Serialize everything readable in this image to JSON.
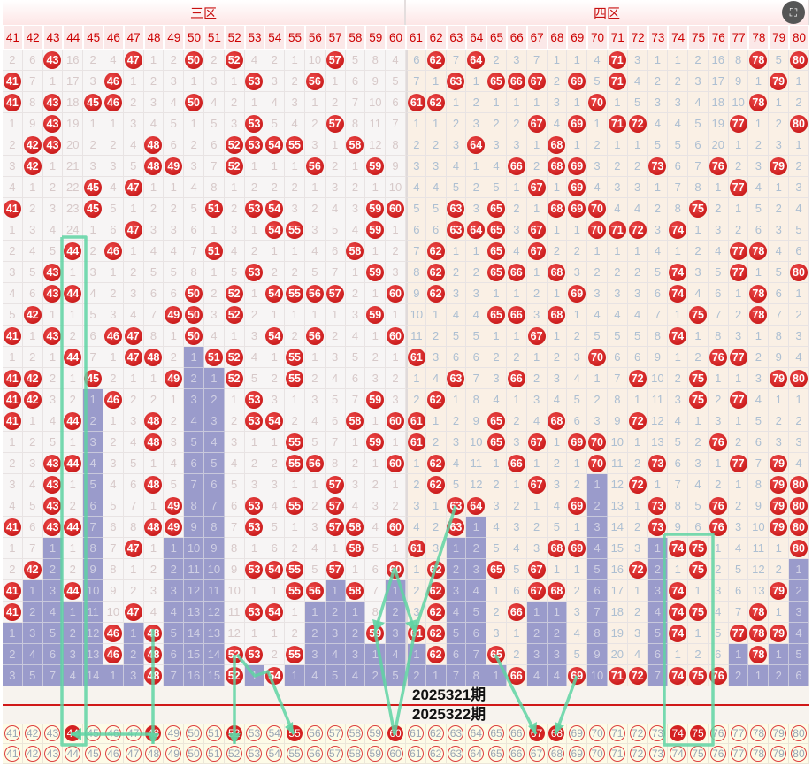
{
  "zones": [
    "三区",
    "四区"
  ],
  "columns": [
    41,
    42,
    43,
    44,
    45,
    46,
    47,
    48,
    49,
    50,
    51,
    52,
    53,
    54,
    55,
    56,
    57,
    58,
    59,
    60,
    61,
    62,
    63,
    64,
    65,
    66,
    67,
    68,
    69,
    70,
    71,
    72,
    73,
    74,
    75,
    76,
    77,
    78,
    79,
    80
  ],
  "rows": [
    [
      2,
      6,
      43,
      16,
      2,
      4,
      47,
      1,
      2,
      50,
      2,
      52,
      4,
      2,
      1,
      10,
      57,
      5,
      8,
      4,
      6,
      62,
      7,
      64,
      2,
      3,
      7,
      1,
      1,
      4,
      71,
      3,
      1,
      1,
      2,
      16,
      8,
      78,
      5,
      80
    ],
    [
      41,
      7,
      1,
      17,
      3,
      46,
      1,
      2,
      3,
      1,
      3,
      1,
      53,
      3,
      2,
      56,
      1,
      6,
      9,
      5,
      7,
      1,
      63,
      1,
      65,
      66,
      67,
      2,
      69,
      5,
      71,
      4,
      2,
      2,
      3,
      17,
      9,
      1,
      79,
      1
    ],
    [
      41,
      8,
      43,
      18,
      45,
      46,
      2,
      3,
      4,
      50,
      4,
      2,
      1,
      4,
      3,
      1,
      2,
      7,
      10,
      6,
      61,
      62,
      1,
      2,
      1,
      1,
      1,
      3,
      1,
      70,
      1,
      5,
      3,
      3,
      4,
      18,
      10,
      78,
      1,
      2
    ],
    [
      1,
      9,
      43,
      19,
      1,
      1,
      3,
      4,
      5,
      1,
      5,
      3,
      53,
      5,
      4,
      2,
      57,
      8,
      11,
      7,
      1,
      1,
      2,
      3,
      2,
      2,
      67,
      4,
      69,
      1,
      71,
      72,
      4,
      4,
      5,
      19,
      77,
      1,
      2,
      80
    ],
    [
      2,
      42,
      43,
      20,
      2,
      2,
      4,
      48,
      6,
      2,
      6,
      52,
      53,
      54,
      55,
      3,
      1,
      58,
      12,
      8,
      2,
      2,
      3,
      64,
      3,
      3,
      1,
      68,
      1,
      2,
      1,
      1,
      5,
      5,
      6,
      20,
      1,
      2,
      3,
      1
    ],
    [
      3,
      42,
      1,
      21,
      3,
      3,
      5,
      48,
      49,
      3,
      7,
      52,
      1,
      1,
      1,
      56,
      2,
      1,
      59,
      9,
      3,
      3,
      4,
      1,
      4,
      66,
      2,
      68,
      69,
      3,
      2,
      2,
      73,
      6,
      7,
      76,
      2,
      3,
      79,
      2
    ],
    [
      4,
      1,
      2,
      22,
      45,
      4,
      47,
      1,
      1,
      4,
      8,
      1,
      2,
      2,
      2,
      1,
      3,
      2,
      1,
      10,
      4,
      4,
      5,
      2,
      5,
      1,
      67,
      1,
      69,
      4,
      3,
      3,
      1,
      7,
      8,
      1,
      77,
      4,
      1,
      3
    ],
    [
      41,
      2,
      3,
      23,
      45,
      5,
      1,
      2,
      2,
      5,
      51,
      2,
      53,
      54,
      3,
      2,
      4,
      3,
      59,
      60,
      5,
      5,
      63,
      3,
      65,
      2,
      1,
      68,
      69,
      70,
      4,
      4,
      2,
      8,
      75,
      2,
      1,
      5,
      2,
      4
    ],
    [
      1,
      3,
      4,
      24,
      1,
      6,
      47,
      3,
      3,
      6,
      1,
      3,
      1,
      54,
      55,
      3,
      5,
      4,
      59,
      1,
      6,
      6,
      63,
      64,
      65,
      3,
      67,
      1,
      1,
      70,
      71,
      72,
      3,
      74,
      1,
      3,
      2,
      6,
      3,
      5
    ],
    [
      2,
      4,
      5,
      44,
      2,
      46,
      1,
      4,
      4,
      7,
      51,
      4,
      2,
      1,
      1,
      4,
      6,
      58,
      1,
      2,
      7,
      62,
      1,
      1,
      65,
      4,
      67,
      2,
      2,
      1,
      1,
      1,
      4,
      1,
      2,
      4,
      77,
      78,
      4,
      6
    ],
    [
      3,
      5,
      43,
      1,
      3,
      1,
      2,
      5,
      5,
      8,
      1,
      5,
      53,
      2,
      2,
      5,
      7,
      1,
      59,
      3,
      8,
      62,
      2,
      2,
      65,
      66,
      1,
      68,
      3,
      2,
      2,
      2,
      5,
      74,
      3,
      5,
      77,
      1,
      5,
      80
    ],
    [
      4,
      6,
      43,
      44,
      4,
      2,
      3,
      6,
      6,
      50,
      2,
      52,
      1,
      54,
      55,
      56,
      57,
      2,
      1,
      60,
      9,
      62,
      3,
      3,
      1,
      1,
      2,
      1,
      69,
      3,
      3,
      3,
      6,
      74,
      4,
      6,
      1,
      78,
      6,
      1
    ],
    [
      5,
      42,
      1,
      1,
      5,
      3,
      4,
      7,
      49,
      50,
      3,
      52,
      2,
      1,
      1,
      1,
      1,
      3,
      59,
      1,
      10,
      1,
      4,
      4,
      65,
      66,
      3,
      68,
      1,
      4,
      4,
      4,
      7,
      1,
      75,
      7,
      2,
      78,
      7,
      2
    ],
    [
      41,
      1,
      43,
      2,
      6,
      46,
      47,
      8,
      1,
      50,
      4,
      1,
      3,
      54,
      2,
      56,
      2,
      4,
      1,
      60,
      11,
      2,
      5,
      5,
      1,
      1,
      67,
      1,
      2,
      5,
      5,
      5,
      8,
      74,
      1,
      8,
      3,
      1,
      8,
      3
    ],
    [
      1,
      2,
      1,
      44,
      7,
      1,
      47,
      48,
      2,
      1,
      51,
      52,
      4,
      1,
      55,
      1,
      3,
      5,
      2,
      1,
      61,
      3,
      6,
      6,
      2,
      2,
      1,
      2,
      3,
      70,
      6,
      6,
      9,
      1,
      2,
      76,
      77,
      2,
      9,
      4
    ],
    [
      41,
      42,
      2,
      1,
      45,
      2,
      1,
      1,
      49,
      2,
      1,
      52,
      5,
      2,
      55,
      2,
      4,
      6,
      3,
      2,
      1,
      4,
      63,
      7,
      3,
      66,
      2,
      3,
      4,
      1,
      7,
      72,
      10,
      2,
      75,
      1,
      1,
      3,
      79,
      80
    ],
    [
      41,
      42,
      3,
      2,
      1,
      46,
      2,
      2,
      1,
      3,
      2,
      1,
      53,
      3,
      1,
      3,
      5,
      7,
      59,
      3,
      2,
      62,
      1,
      8,
      4,
      1,
      3,
      4,
      5,
      2,
      8,
      1,
      11,
      3,
      75,
      2,
      77,
      4,
      1,
      1
    ],
    [
      41,
      1,
      4,
      44,
      2,
      1,
      3,
      48,
      2,
      4,
      3,
      2,
      53,
      54,
      2,
      4,
      6,
      58,
      1,
      60,
      61,
      1,
      2,
      9,
      65,
      2,
      4,
      68,
      6,
      3,
      9,
      72,
      12,
      4,
      1,
      3,
      1,
      5,
      2,
      2
    ],
    [
      1,
      2,
      5,
      1,
      3,
      2,
      4,
      48,
      3,
      5,
      4,
      3,
      1,
      1,
      55,
      5,
      7,
      1,
      59,
      1,
      61,
      2,
      3,
      10,
      65,
      3,
      67,
      1,
      69,
      70,
      10,
      1,
      13,
      5,
      2,
      76,
      2,
      6,
      3,
      3
    ],
    [
      2,
      3,
      43,
      44,
      4,
      3,
      5,
      1,
      4,
      6,
      5,
      4,
      2,
      2,
      55,
      56,
      8,
      2,
      1,
      60,
      1,
      62,
      4,
      11,
      1,
      66,
      1,
      2,
      1,
      70,
      11,
      2,
      73,
      6,
      3,
      1,
      77,
      7,
      79,
      4
    ],
    [
      3,
      4,
      43,
      1,
      5,
      4,
      6,
      48,
      5,
      7,
      6,
      5,
      3,
      3,
      1,
      1,
      57,
      3,
      2,
      1,
      2,
      62,
      5,
      12,
      2,
      1,
      67,
      3,
      2,
      1,
      12,
      72,
      1,
      7,
      4,
      2,
      1,
      8,
      79,
      80
    ],
    [
      4,
      5,
      43,
      2,
      6,
      5,
      7,
      1,
      49,
      8,
      7,
      6,
      53,
      4,
      55,
      2,
      57,
      4,
      3,
      2,
      3,
      1,
      63,
      64,
      3,
      2,
      1,
      4,
      69,
      2,
      13,
      1,
      73,
      8,
      5,
      76,
      2,
      9,
      79,
      80
    ],
    [
      41,
      6,
      43,
      44,
      7,
      6,
      8,
      48,
      49,
      9,
      8,
      7,
      53,
      5,
      1,
      3,
      57,
      58,
      4,
      60,
      4,
      2,
      63,
      1,
      4,
      3,
      2,
      5,
      1,
      3,
      14,
      2,
      73,
      9,
      6,
      76,
      3,
      10,
      79,
      80
    ],
    [
      1,
      7,
      1,
      1,
      8,
      7,
      47,
      1,
      1,
      10,
      9,
      8,
      1,
      6,
      2,
      4,
      1,
      58,
      5,
      1,
      61,
      3,
      1,
      2,
      5,
      4,
      3,
      68,
      69,
      4,
      15,
      3,
      1,
      74,
      75,
      1,
      4,
      11,
      1,
      80
    ],
    [
      2,
      42,
      2,
      2,
      9,
      8,
      1,
      2,
      2,
      11,
      10,
      9,
      53,
      54,
      55,
      5,
      57,
      1,
      6,
      60,
      1,
      62,
      2,
      3,
      65,
      5,
      67,
      1,
      1,
      5,
      16,
      72,
      2,
      1,
      75,
      2,
      5,
      12,
      2,
      1
    ],
    [
      41,
      1,
      3,
      44,
      10,
      9,
      2,
      3,
      3,
      12,
      11,
      10,
      1,
      1,
      55,
      56,
      1,
      58,
      7,
      1,
      2,
      62,
      3,
      4,
      1,
      6,
      67,
      68,
      2,
      6,
      17,
      1,
      3,
      74,
      1,
      3,
      6,
      13,
      79,
      2
    ],
    [
      41,
      2,
      4,
      1,
      11,
      10,
      47,
      4,
      4,
      13,
      12,
      11,
      53,
      54,
      1,
      1,
      2,
      1,
      8,
      2,
      3,
      62,
      4,
      5,
      2,
      66,
      1,
      1,
      3,
      7,
      18,
      2,
      4,
      74,
      75,
      4,
      7,
      78,
      1,
      3
    ],
    [
      1,
      3,
      5,
      2,
      12,
      46,
      1,
      48,
      5,
      14,
      13,
      12,
      1,
      1,
      2,
      2,
      3,
      2,
      59,
      3,
      61,
      62,
      5,
      6,
      3,
      1,
      2,
      2,
      4,
      8,
      19,
      3,
      5,
      74,
      1,
      5,
      77,
      78,
      79,
      4
    ],
    [
      2,
      4,
      6,
      3,
      13,
      46,
      2,
      48,
      6,
      15,
      14,
      52,
      53,
      2,
      55,
      3,
      4,
      3,
      1,
      4,
      1,
      62,
      6,
      7,
      65,
      2,
      3,
      3,
      5,
      9,
      20,
      4,
      6,
      1,
      2,
      6,
      1,
      78,
      1,
      5
    ],
    [
      3,
      5,
      7,
      4,
      14,
      1,
      3,
      48,
      7,
      16,
      15,
      52,
      1,
      54,
      1,
      4,
      5,
      4,
      2,
      5,
      2,
      1,
      7,
      8,
      1,
      66,
      4,
      4,
      69,
      10,
      71,
      72,
      7,
      74,
      75,
      76,
      2,
      1,
      2,
      6
    ]
  ],
  "issue_labels": [
    "2025321期",
    "2025322期"
  ],
  "prediction_selected": [
    44,
    48,
    52,
    55,
    60,
    67,
    68,
    74,
    75
  ],
  "colors": {
    "ball": "#d42222",
    "streak": "#9a9bcb",
    "annotation": "#5fd3a3"
  },
  "tool_icon": "translate-icon"
}
